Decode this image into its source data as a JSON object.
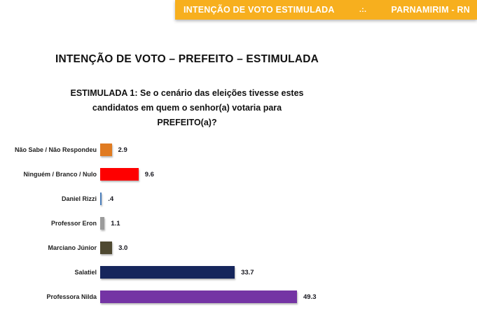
{
  "header": {
    "left": "INTENÇÃO DE VOTO ESTIMULADA",
    "separator": ".:.",
    "right": "PARNAMIRIM - RN",
    "bg_color": "#F7AF1E",
    "text_color": "#FFFFFF"
  },
  "title": "INTENÇÃO DE VOTO – PREFEITO – ESTIMULADA",
  "question": {
    "lines": [
      "ESTIMULADA 1: Se o cenário das eleições tivesse estes",
      "candidatos em quem o senhor(a) votaria para",
      "PREFEITO(a)?"
    ]
  },
  "chart_data": {
    "type": "bar",
    "orientation": "horizontal",
    "title": "INTENÇÃO DE VOTO – PREFEITO – ESTIMULADA",
    "categories": [
      "Não Sabe / Não Respondeu",
      "Ninguém / Branco / Nulo",
      "Daniel Rizzi",
      "Professor Eron",
      "Marciano Júnior",
      "Salatiel",
      "Professora Nilda"
    ],
    "values": [
      2.9,
      9.6,
      0.4,
      1.1,
      3.0,
      33.7,
      49.3
    ],
    "value_labels": [
      "2.9",
      "9.6",
      ".4",
      "1.1",
      "3.0",
      "33.7",
      "49.3"
    ],
    "bar_colors": [
      "#E07B21",
      "#FE0000",
      "#4A7EBB",
      "#9B9B9B",
      "#4F4931",
      "#16265C",
      "#7434A4"
    ],
    "xlim": [
      0,
      55
    ],
    "grid": false,
    "legend": "none",
    "data_labels": "outside-end"
  }
}
